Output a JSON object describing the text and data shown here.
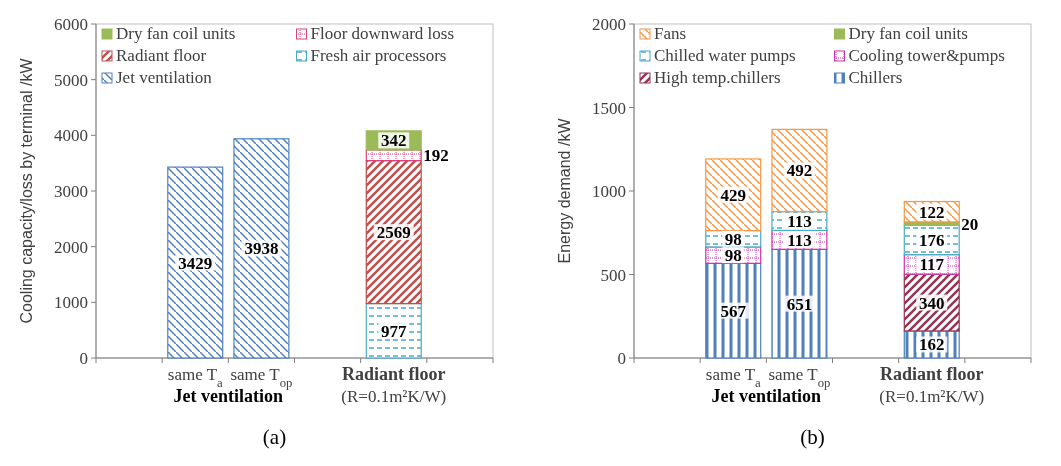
{
  "chart_data": [
    {
      "type": "bar",
      "title": "(a)",
      "ylabel": "Cooling capacity/loss by terminal /kW",
      "stacked": true,
      "data_labels": true,
      "legend": "top",
      "grid": false,
      "categories": [
        null,
        "same T$_{a}$",
        "same T$_{op}$",
        null,
        "Radiant floor\n(R=0.1m²K/W)",
        null
      ],
      "ylim": [
        0,
        6000
      ],
      "yticks": [
        0,
        1000,
        2000,
        3000,
        4000,
        5000,
        6000
      ],
      "annotations": [
        "Jet ventilation"
      ],
      "series": [
        {
          "name": "Jet ventilation",
          "color": "#4f81bd",
          "values": [
            null,
            3429,
            3938,
            null,
            null,
            null
          ]
        },
        {
          "name": "Fresh air processors",
          "color": "#4bacc6",
          "values": [
            null,
            null,
            null,
            null,
            977,
            null
          ]
        },
        {
          "name": "Radiant floor",
          "color": "#c0504d",
          "values": [
            null,
            null,
            null,
            null,
            2569,
            null
          ]
        },
        {
          "name": "Floor downward loss",
          "color": "#e0407a",
          "values": [
            null,
            null,
            null,
            null,
            192,
            null
          ]
        },
        {
          "name": "Dry fan coil units",
          "color": "#9bbb59",
          "values": [
            null,
            null,
            null,
            null,
            342,
            null
          ]
        }
      ]
    },
    {
      "type": "bar",
      "title": "(b)",
      "ylabel": "Energy demand /kW",
      "stacked": true,
      "data_labels": true,
      "legend": "top",
      "grid": false,
      "categories": [
        null,
        "same T$_{a}$",
        "same T$_{op}$",
        null,
        "Radiant floor\n(R=0.1m²K/W)",
        null
      ],
      "ylim": [
        0,
        2000
      ],
      "yticks": [
        0,
        500,
        1000,
        1500,
        2000
      ],
      "annotations": [
        "Jet ventilation"
      ],
      "series": [
        {
          "name": "Chillers",
          "color": "#4f81bd",
          "values": [
            null,
            567,
            651,
            null,
            162,
            null
          ]
        },
        {
          "name": "High temp.chillers",
          "color": "#953553",
          "values": [
            null,
            null,
            null,
            null,
            340,
            null
          ]
        },
        {
          "name": "Cooling tower&pumps",
          "color": "#cc33aa",
          "values": [
            null,
            98,
            113,
            null,
            117,
            null
          ]
        },
        {
          "name": "Chilled water pumps",
          "color": "#4bacc6",
          "values": [
            null,
            98,
            113,
            null,
            176,
            null
          ]
        },
        {
          "name": "Dry fan coil units",
          "color": "#9bbb59",
          "values": [
            null,
            null,
            null,
            null,
            20,
            null
          ]
        },
        {
          "name": "Fans",
          "color": "#f79646",
          "values": [
            null,
            429,
            492,
            null,
            122,
            null
          ]
        }
      ]
    }
  ]
}
